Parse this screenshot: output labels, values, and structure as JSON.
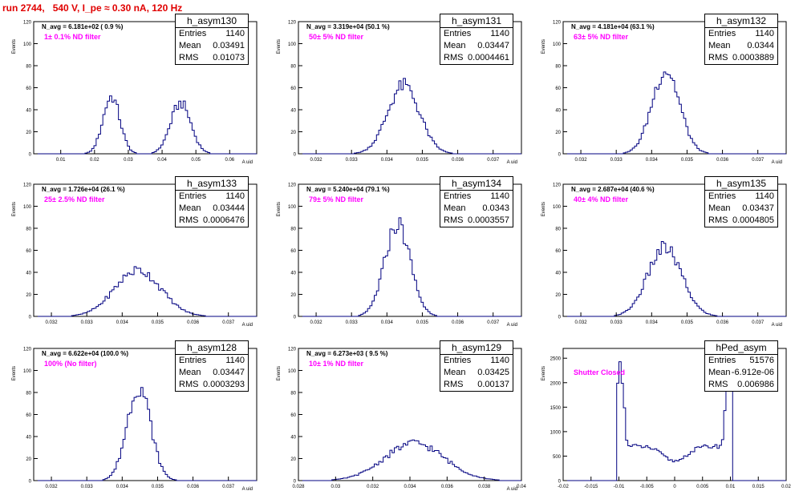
{
  "run_title": "run 2744,   540 V, I_pe ≈ 0.30 nA, 120 Hz",
  "chart_data": [
    {
      "type": "bar",
      "name": "h_asym130",
      "stats": {
        "entries": "1140",
        "mean": "0.03491",
        "rms": "0.01073"
      },
      "n_avg_label": "N_avg = 6.181e+02 ( 0.9 %)",
      "filter_label": "1± 0.1% ND filter",
      "xlabel": "A_uid",
      "ylabel": "Events",
      "xlim": [
        0.002,
        0.068
      ],
      "ylim": [
        0,
        120
      ],
      "xticks": [
        0.01,
        0.02,
        0.03,
        0.04,
        0.05,
        0.06
      ],
      "yticks": [
        0,
        20,
        40,
        60,
        80,
        100,
        120
      ],
      "peaks": [
        {
          "mu": 0.025,
          "sigma": 0.0025,
          "amp": 52
        },
        {
          "mu": 0.0455,
          "sigma": 0.003,
          "amp": 46
        }
      ]
    },
    {
      "type": "bar",
      "name": "h_asym131",
      "stats": {
        "entries": "1140",
        "mean": "0.03447",
        "rms": "0.0004461"
      },
      "n_avg_label": "N_avg = 3.319e+04 (50.1 %)",
      "filter_label": "50± 5% ND filter",
      "xlabel": "A_uid",
      "ylabel": "Events",
      "xlim": [
        0.0315,
        0.0378
      ],
      "ylim": [
        0,
        120
      ],
      "xticks": [
        0.032,
        0.033,
        0.034,
        0.035,
        0.036,
        0.037
      ],
      "yticks": [
        0,
        20,
        40,
        60,
        80,
        100,
        120
      ],
      "peaks": [
        {
          "mu": 0.03447,
          "sigma": 0.00045,
          "amp": 62
        }
      ]
    },
    {
      "type": "bar",
      "name": "h_asym132",
      "stats": {
        "entries": "1140",
        "mean": "0.0344",
        "rms": "0.0003889"
      },
      "n_avg_label": "N_avg = 4.181e+04 (63.1 %)",
      "filter_label": "63± 5% ND filter",
      "xlabel": "A_uid",
      "ylabel": "Events",
      "xlim": [
        0.0315,
        0.0378
      ],
      "ylim": [
        0,
        120
      ],
      "xticks": [
        0.032,
        0.033,
        0.034,
        0.035,
        0.036,
        0.037
      ],
      "yticks": [
        0,
        20,
        40,
        60,
        80,
        100,
        120
      ],
      "peaks": [
        {
          "mu": 0.0344,
          "sigma": 0.00039,
          "amp": 76
        }
      ]
    },
    {
      "type": "bar",
      "name": "h_asym133",
      "stats": {
        "entries": "1140",
        "mean": "0.03444",
        "rms": "0.0006476"
      },
      "n_avg_label": "N_avg = 1.726e+04 (26.1 %)",
      "filter_label": "25± 2.5% ND filter",
      "xlabel": "A_uid",
      "ylabel": "Events",
      "xlim": [
        0.0315,
        0.0378
      ],
      "ylim": [
        0,
        120
      ],
      "xticks": [
        0.032,
        0.033,
        0.034,
        0.035,
        0.036,
        0.037
      ],
      "yticks": [
        0,
        20,
        40,
        60,
        80,
        100,
        120
      ],
      "peaks": [
        {
          "mu": 0.03444,
          "sigma": 0.00065,
          "amp": 42
        }
      ]
    },
    {
      "type": "bar",
      "name": "h_asym134",
      "stats": {
        "entries": "1140",
        "mean": "0.0343",
        "rms": "0.0003557"
      },
      "n_avg_label": "N_avg = 5.240e+04 (79.1 %)",
      "filter_label": "79± 5% ND filter",
      "xlabel": "A_uid",
      "ylabel": "Events",
      "xlim": [
        0.0315,
        0.0378
      ],
      "ylim": [
        0,
        120
      ],
      "xticks": [
        0.032,
        0.033,
        0.034,
        0.035,
        0.036,
        0.037
      ],
      "yticks": [
        0,
        20,
        40,
        60,
        80,
        100,
        120
      ],
      "peaks": [
        {
          "mu": 0.0343,
          "sigma": 0.00036,
          "amp": 84
        }
      ]
    },
    {
      "type": "bar",
      "name": "h_asym135",
      "stats": {
        "entries": "1140",
        "mean": "0.03437",
        "rms": "0.0004805"
      },
      "n_avg_label": "N_avg = 2.687e+04 (40.6 %)",
      "filter_label": "40± 4% ND filter",
      "xlabel": "A_uid",
      "ylabel": "Events",
      "xlim": [
        0.0315,
        0.0378
      ],
      "ylim": [
        0,
        120
      ],
      "xticks": [
        0.032,
        0.033,
        0.034,
        0.035,
        0.036,
        0.037
      ],
      "yticks": [
        0,
        20,
        40,
        60,
        80,
        100,
        120
      ],
      "peaks": [
        {
          "mu": 0.03437,
          "sigma": 0.00048,
          "amp": 62
        }
      ]
    },
    {
      "type": "bar",
      "name": "h_asym128",
      "stats": {
        "entries": "1140",
        "mean": "0.03447",
        "rms": "0.0003293"
      },
      "n_avg_label": "N_avg = 6.622e+04 (100.0 %)",
      "filter_label": "100% (No filter)",
      "xlabel": "A_uid",
      "ylabel": "Events",
      "xlim": [
        0.0315,
        0.0378
      ],
      "ylim": [
        0,
        120
      ],
      "xticks": [
        0.032,
        0.033,
        0.034,
        0.035,
        0.036,
        0.037
      ],
      "yticks": [
        0,
        20,
        40,
        60,
        80,
        100,
        120
      ],
      "peaks": [
        {
          "mu": 0.03447,
          "sigma": 0.00033,
          "amp": 86
        }
      ]
    },
    {
      "type": "bar",
      "name": "h_asym129",
      "stats": {
        "entries": "1140",
        "mean": "0.03425",
        "rms": "0.00137"
      },
      "n_avg_label": "N_avg = 6.273e+03 ( 9.5 %)",
      "filter_label": "10± 1% ND filter",
      "xlabel": "A_uid",
      "ylabel": "Events",
      "xlim": [
        0.028,
        0.04
      ],
      "ylim": [
        0,
        120
      ],
      "xticks": [
        0.028,
        0.03,
        0.032,
        0.034,
        0.036,
        0.038,
        0.04
      ],
      "yticks": [
        0,
        20,
        40,
        60,
        80,
        100,
        120
      ],
      "peaks": [
        {
          "mu": 0.03425,
          "sigma": 0.0016,
          "amp": 34
        }
      ]
    },
    {
      "type": "bar",
      "name": "hPed_asym",
      "stats": {
        "entries": "51576",
        "mean": "-6.912e-06",
        "rms": "0.006986"
      },
      "n_avg_label": "",
      "filter_label": "Shutter Closed",
      "xlabel": "",
      "ylabel": "Events",
      "xlim": [
        -0.02,
        0.02
      ],
      "ylim": [
        0,
        2700
      ],
      "xticks": [
        -0.02,
        -0.015,
        -0.01,
        -0.005,
        0,
        0.005,
        0.01,
        0.015,
        0.02
      ],
      "yticks": [
        0,
        500,
        1000,
        1500,
        2000,
        2500
      ],
      "ped": {
        "lo": -0.0098,
        "hi": 0.0098,
        "edge_amp": 2300,
        "base": 700,
        "dip": 400
      }
    }
  ]
}
